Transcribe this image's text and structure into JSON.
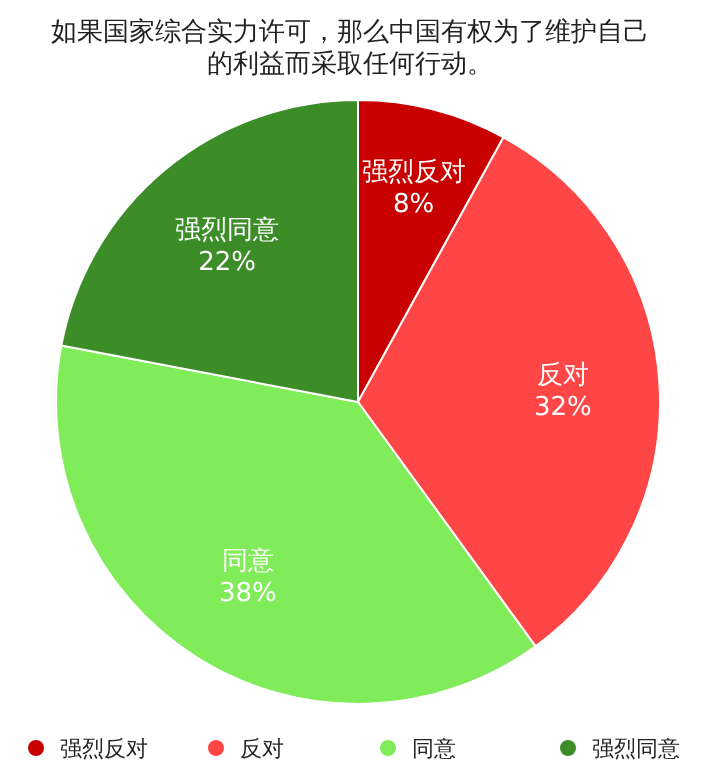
{
  "chart_data": {
    "type": "pie",
    "title": "如果国家综合实力许可，那么中国有权为了维护自己的利益而采取任何行动。",
    "categories": [
      "强烈反对",
      "反对",
      "同意",
      "强烈同意"
    ],
    "values": [
      8,
      32,
      38,
      22
    ],
    "colors": [
      "#c80000",
      "#ff4646",
      "#80ec5a",
      "#3c8c28"
    ],
    "value_labels": [
      "8%",
      "32%",
      "38%",
      "22%"
    ],
    "legend": "bottom"
  }
}
